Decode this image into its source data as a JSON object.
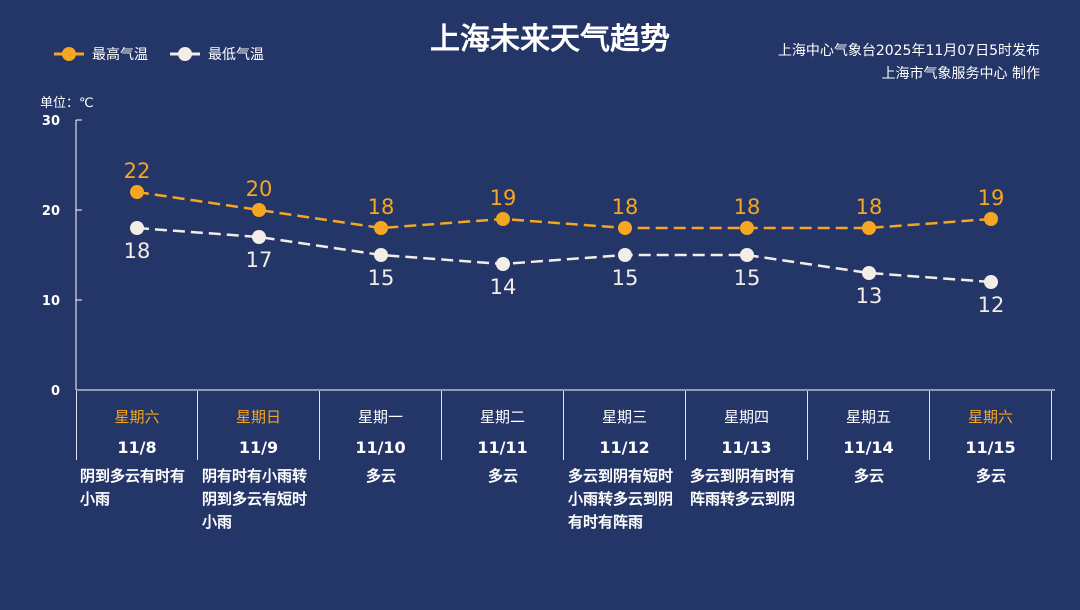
{
  "title": "上海未来天气趋势",
  "source_line1": "上海中心气象台2025年11月07日5时发布",
  "source_line2": "上海市气象服务中心  制作",
  "unit": "单位：℃",
  "colors": {
    "high": "#f5a623",
    "low": "#f3ede8",
    "weekend": "#f5a623",
    "bg": "#243567"
  },
  "chart_data": {
    "type": "line",
    "title": "上海未来天气趋势",
    "ylabel": "单位：℃",
    "ylim": [
      0,
      30
    ],
    "yticks": [
      "0",
      "10",
      "20",
      "30"
    ],
    "legend_position": "top-left",
    "categories": [
      "11/8",
      "11/9",
      "11/10",
      "11/11",
      "11/12",
      "11/13",
      "11/14",
      "11/15"
    ],
    "series": [
      {
        "name": "最高气温",
        "values": [
          22,
          20,
          18,
          19,
          18,
          18,
          18,
          19
        ]
      },
      {
        "name": "最低气温",
        "values": [
          18,
          17,
          15,
          14,
          15,
          15,
          13,
          12
        ]
      }
    ]
  },
  "days": [
    {
      "weekday": "星期六",
      "date": "11/8",
      "weather": "阴到多云有时有小雨",
      "weekend": true
    },
    {
      "weekday": "星期日",
      "date": "11/9",
      "weather": "阴有时有小雨转阴到多云有短时小雨",
      "weekend": true
    },
    {
      "weekday": "星期一",
      "date": "11/10",
      "weather": "多云",
      "weekend": false
    },
    {
      "weekday": "星期二",
      "date": "11/11",
      "weather": "多云",
      "weekend": false
    },
    {
      "weekday": "星期三",
      "date": "11/12",
      "weather": "多云到阴有短时小雨转多云到阴有时有阵雨",
      "weekend": false
    },
    {
      "weekday": "星期四",
      "date": "11/13",
      "weather": "多云到阴有时有阵雨转多云到阴",
      "weekend": false
    },
    {
      "weekday": "星期五",
      "date": "11/14",
      "weather": "多云",
      "weekend": false
    },
    {
      "weekday": "星期六",
      "date": "11/15",
      "weather": "多云",
      "weekend": true
    }
  ]
}
